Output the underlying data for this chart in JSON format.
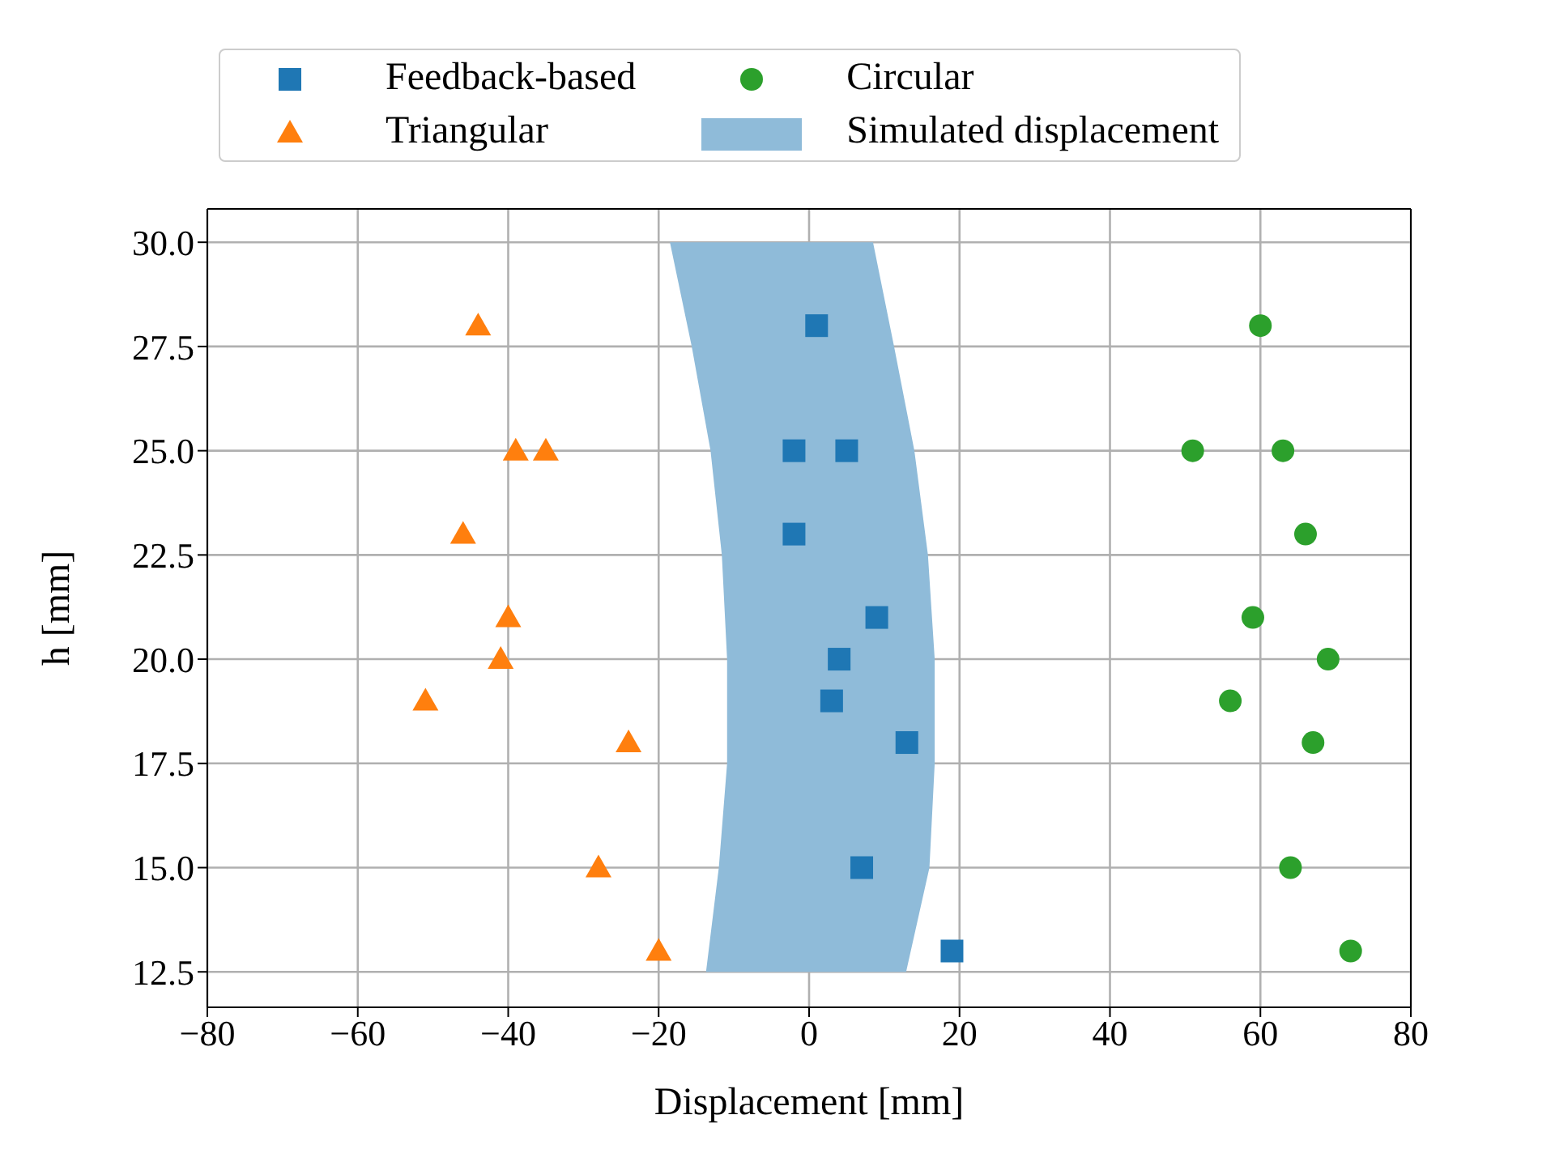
{
  "chart_data": {
    "type": "scatter",
    "xlabel": "Displacement [mm]",
    "ylabel": "h [mm]",
    "xlim": [
      -80,
      80
    ],
    "xticks": [
      -80,
      -60,
      -40,
      -20,
      0,
      20,
      40,
      60,
      80
    ],
    "ylim": [
      11.65,
      30.8
    ],
    "yticks": [
      {
        "value": 12.5,
        "label": "12.5"
      },
      {
        "value": 15,
        "label": "15.0"
      },
      {
        "value": 17.5,
        "label": "17.5"
      },
      {
        "value": 20,
        "label": "20.0"
      },
      {
        "value": 22.5,
        "label": "22.5"
      },
      {
        "value": 25,
        "label": "25.0"
      },
      {
        "value": 27.5,
        "label": "27.5"
      },
      {
        "value": 30,
        "label": "30.0"
      }
    ],
    "grid": true,
    "legend": "top",
    "series": [
      {
        "name": "Feedback-based",
        "marker": "square",
        "color": "#1f77b4",
        "x": [
          1,
          -2,
          5,
          -2,
          9,
          4,
          3,
          13,
          7,
          19
        ],
        "values": [
          28,
          25,
          25,
          23,
          21,
          20,
          19,
          18,
          15,
          13
        ]
      },
      {
        "name": "Triangular",
        "marker": "triangle",
        "color": "#ff7f0e",
        "x": [
          -44,
          -39,
          -35,
          -46,
          -40,
          -41,
          -51,
          -24,
          -28,
          -20
        ],
        "values": [
          28,
          25,
          25,
          23,
          21,
          20,
          19,
          18,
          15,
          13
        ]
      },
      {
        "name": "Circular",
        "marker": "circle",
        "color": "#2ca02c",
        "x": [
          60,
          51,
          63,
          66,
          59,
          69,
          56,
          67,
          64,
          72
        ],
        "values": [
          28,
          25,
          25,
          23,
          21,
          20,
          19,
          18,
          15,
          13
        ]
      },
      {
        "name": "Simulated displacement",
        "type": "area",
        "color": "#8fbbd9",
        "x": [
          -13.7,
          -12,
          -10.9,
          -10.9,
          -11.6,
          -13.1,
          -15.6,
          -18.5,
          8.5,
          11.3,
          14,
          15.8,
          16.7,
          16.7,
          16,
          12.9
        ],
        "values": [
          12.5,
          15,
          17.5,
          20,
          22.5,
          25,
          27.5,
          30,
          30,
          27.5,
          25,
          22.5,
          20,
          17.5,
          15,
          12.5
        ]
      }
    ]
  }
}
